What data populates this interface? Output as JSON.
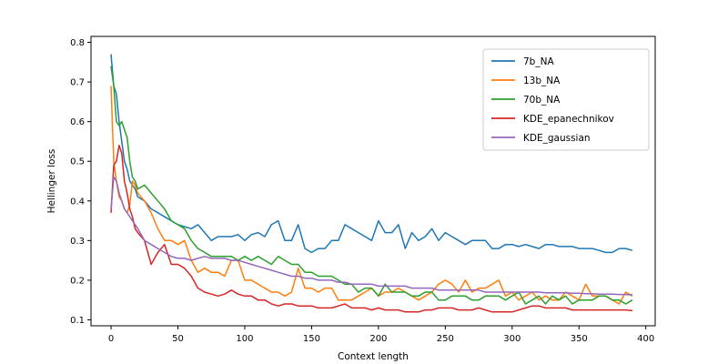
{
  "chart_data": {
    "type": "line",
    "xlabel": "Context length",
    "ylabel": "Hellinger loss",
    "xlim": [
      -15,
      407
    ],
    "ylim": [
      0.085,
      0.815
    ],
    "xticks": [
      0,
      50,
      100,
      150,
      200,
      250,
      300,
      350,
      400
    ],
    "yticks": [
      0.1,
      0.2,
      0.3,
      0.4,
      0.5,
      0.6,
      0.7,
      0.8
    ],
    "xtick_labels": [
      "0",
      "50",
      "100",
      "150",
      "200",
      "250",
      "300",
      "350",
      "400"
    ],
    "ytick_labels": [
      "0.1",
      "0.2",
      "0.3",
      "0.4",
      "0.5",
      "0.6",
      "0.7",
      "0.8"
    ],
    "grid": false,
    "legend_position": "top-right",
    "series": [
      {
        "name": "7b_NA",
        "color": "#1f77b4",
        "x": [
          0,
          2,
          4,
          6,
          8,
          10,
          12,
          14,
          16,
          18,
          20,
          25,
          30,
          35,
          40,
          45,
          50,
          55,
          60,
          65,
          70,
          75,
          80,
          85,
          90,
          95,
          100,
          105,
          110,
          115,
          120,
          125,
          130,
          135,
          140,
          145,
          150,
          155,
          160,
          165,
          170,
          175,
          180,
          185,
          190,
          195,
          200,
          205,
          210,
          215,
          220,
          225,
          230,
          235,
          240,
          245,
          250,
          255,
          260,
          265,
          270,
          275,
          280,
          285,
          290,
          295,
          300,
          305,
          310,
          315,
          320,
          325,
          330,
          335,
          340,
          345,
          350,
          355,
          360,
          365,
          370,
          375,
          380,
          385,
          390
        ],
        "y": [
          0.77,
          0.69,
          0.67,
          0.6,
          0.55,
          0.5,
          0.48,
          0.45,
          0.44,
          0.43,
          0.41,
          0.4,
          0.38,
          0.37,
          0.36,
          0.35,
          0.34,
          0.335,
          0.33,
          0.34,
          0.32,
          0.3,
          0.31,
          0.31,
          0.31,
          0.315,
          0.3,
          0.315,
          0.32,
          0.31,
          0.34,
          0.35,
          0.3,
          0.3,
          0.34,
          0.28,
          0.27,
          0.28,
          0.28,
          0.3,
          0.3,
          0.34,
          0.33,
          0.32,
          0.31,
          0.3,
          0.35,
          0.32,
          0.32,
          0.34,
          0.28,
          0.32,
          0.3,
          0.31,
          0.33,
          0.3,
          0.32,
          0.31,
          0.3,
          0.29,
          0.3,
          0.3,
          0.3,
          0.28,
          0.28,
          0.29,
          0.29,
          0.285,
          0.29,
          0.285,
          0.28,
          0.29,
          0.29,
          0.285,
          0.285,
          0.285,
          0.28,
          0.28,
          0.28,
          0.275,
          0.27,
          0.27,
          0.28,
          0.28,
          0.275
        ]
      },
      {
        "name": "13b_NA",
        "color": "#ff7f0e",
        "x": [
          0,
          2,
          4,
          6,
          8,
          10,
          12,
          14,
          16,
          18,
          20,
          25,
          30,
          35,
          40,
          45,
          50,
          55,
          60,
          65,
          70,
          75,
          80,
          85,
          90,
          95,
          100,
          105,
          110,
          115,
          120,
          125,
          130,
          135,
          140,
          145,
          150,
          155,
          160,
          165,
          170,
          175,
          180,
          185,
          190,
          195,
          200,
          205,
          210,
          215,
          220,
          225,
          230,
          235,
          240,
          245,
          250,
          255,
          260,
          265,
          270,
          275,
          280,
          285,
          290,
          295,
          300,
          305,
          310,
          315,
          320,
          325,
          330,
          335,
          340,
          345,
          350,
          355,
          360,
          365,
          370,
          375,
          380,
          385,
          390
        ],
        "y": [
          0.69,
          0.5,
          0.45,
          0.41,
          0.4,
          0.38,
          0.37,
          0.39,
          0.45,
          0.44,
          0.42,
          0.4,
          0.37,
          0.33,
          0.3,
          0.3,
          0.29,
          0.3,
          0.25,
          0.22,
          0.23,
          0.22,
          0.22,
          0.21,
          0.25,
          0.25,
          0.2,
          0.2,
          0.19,
          0.18,
          0.17,
          0.17,
          0.16,
          0.17,
          0.23,
          0.18,
          0.18,
          0.17,
          0.18,
          0.18,
          0.15,
          0.15,
          0.15,
          0.16,
          0.17,
          0.18,
          0.16,
          0.17,
          0.17,
          0.18,
          0.17,
          0.16,
          0.15,
          0.16,
          0.17,
          0.19,
          0.2,
          0.19,
          0.17,
          0.2,
          0.17,
          0.18,
          0.18,
          0.19,
          0.2,
          0.16,
          0.17,
          0.15,
          0.16,
          0.17,
          0.15,
          0.16,
          0.15,
          0.15,
          0.17,
          0.16,
          0.15,
          0.19,
          0.16,
          0.16,
          0.16,
          0.15,
          0.14,
          0.17,
          0.16
        ]
      },
      {
        "name": "70b_NA",
        "color": "#2ca02c",
        "x": [
          0,
          2,
          4,
          6,
          8,
          10,
          12,
          14,
          16,
          18,
          20,
          25,
          30,
          35,
          40,
          45,
          50,
          55,
          60,
          65,
          70,
          75,
          80,
          85,
          90,
          95,
          100,
          105,
          110,
          115,
          120,
          125,
          130,
          135,
          140,
          145,
          150,
          155,
          160,
          165,
          170,
          175,
          180,
          185,
          190,
          195,
          200,
          205,
          210,
          215,
          220,
          225,
          230,
          235,
          240,
          245,
          250,
          255,
          260,
          265,
          270,
          275,
          280,
          285,
          290,
          295,
          300,
          305,
          310,
          315,
          320,
          325,
          330,
          335,
          340,
          345,
          350,
          355,
          360,
          365,
          370,
          375,
          380,
          385,
          390
        ],
        "y": [
          0.74,
          0.69,
          0.6,
          0.59,
          0.6,
          0.58,
          0.56,
          0.5,
          0.46,
          0.45,
          0.43,
          0.44,
          0.42,
          0.4,
          0.38,
          0.35,
          0.34,
          0.33,
          0.3,
          0.28,
          0.27,
          0.26,
          0.26,
          0.26,
          0.26,
          0.25,
          0.26,
          0.25,
          0.26,
          0.25,
          0.24,
          0.26,
          0.25,
          0.24,
          0.24,
          0.22,
          0.22,
          0.21,
          0.21,
          0.21,
          0.2,
          0.19,
          0.19,
          0.17,
          0.18,
          0.18,
          0.16,
          0.19,
          0.17,
          0.17,
          0.17,
          0.16,
          0.16,
          0.17,
          0.17,
          0.15,
          0.15,
          0.16,
          0.16,
          0.16,
          0.15,
          0.15,
          0.16,
          0.16,
          0.16,
          0.15,
          0.16,
          0.17,
          0.14,
          0.15,
          0.16,
          0.14,
          0.16,
          0.15,
          0.16,
          0.14,
          0.15,
          0.15,
          0.15,
          0.16,
          0.16,
          0.15,
          0.15,
          0.14,
          0.15
        ]
      },
      {
        "name": "KDE_epanechnikov",
        "color": "#d62728",
        "x": [
          0,
          2,
          4,
          6,
          8,
          10,
          12,
          14,
          16,
          18,
          20,
          25,
          30,
          35,
          40,
          45,
          50,
          55,
          60,
          65,
          70,
          75,
          80,
          85,
          90,
          95,
          100,
          105,
          110,
          115,
          120,
          125,
          130,
          135,
          140,
          145,
          150,
          155,
          160,
          165,
          170,
          175,
          180,
          185,
          190,
          195,
          200,
          205,
          210,
          215,
          220,
          225,
          230,
          235,
          240,
          245,
          250,
          255,
          260,
          265,
          270,
          275,
          280,
          285,
          290,
          295,
          300,
          305,
          310,
          315,
          320,
          325,
          330,
          335,
          340,
          345,
          350,
          355,
          360,
          365,
          370,
          375,
          380,
          385,
          390
        ],
        "y": [
          0.37,
          0.49,
          0.5,
          0.54,
          0.52,
          0.45,
          0.42,
          0.38,
          0.36,
          0.33,
          0.32,
          0.3,
          0.24,
          0.27,
          0.29,
          0.24,
          0.24,
          0.23,
          0.21,
          0.18,
          0.17,
          0.165,
          0.16,
          0.165,
          0.175,
          0.165,
          0.16,
          0.16,
          0.15,
          0.15,
          0.14,
          0.135,
          0.14,
          0.14,
          0.135,
          0.135,
          0.135,
          0.13,
          0.13,
          0.13,
          0.135,
          0.14,
          0.13,
          0.13,
          0.13,
          0.125,
          0.13,
          0.125,
          0.125,
          0.125,
          0.12,
          0.12,
          0.12,
          0.125,
          0.125,
          0.13,
          0.13,
          0.13,
          0.125,
          0.125,
          0.125,
          0.13,
          0.125,
          0.12,
          0.12,
          0.12,
          0.12,
          0.125,
          0.13,
          0.135,
          0.135,
          0.13,
          0.13,
          0.13,
          0.13,
          0.125,
          0.125,
          0.125,
          0.125,
          0.125,
          0.125,
          0.125,
          0.125,
          0.125,
          0.123
        ]
      },
      {
        "name": "KDE_gaussian",
        "color": "#9467bd",
        "x": [
          0,
          2,
          4,
          6,
          8,
          10,
          12,
          14,
          16,
          18,
          20,
          25,
          30,
          35,
          40,
          45,
          50,
          55,
          60,
          65,
          70,
          75,
          80,
          85,
          90,
          95,
          100,
          105,
          110,
          115,
          120,
          125,
          130,
          135,
          140,
          145,
          150,
          155,
          160,
          165,
          170,
          175,
          180,
          185,
          190,
          195,
          200,
          205,
          210,
          215,
          220,
          225,
          230,
          235,
          240,
          245,
          250,
          255,
          260,
          265,
          270,
          275,
          280,
          285,
          290,
          295,
          300,
          305,
          310,
          315,
          320,
          325,
          330,
          335,
          340,
          345,
          350,
          355,
          360,
          365,
          370,
          375,
          380,
          385,
          390
        ],
        "y": [
          0.38,
          0.46,
          0.45,
          0.42,
          0.4,
          0.38,
          0.37,
          0.36,
          0.35,
          0.34,
          0.33,
          0.3,
          0.29,
          0.28,
          0.27,
          0.26,
          0.255,
          0.255,
          0.25,
          0.255,
          0.26,
          0.255,
          0.255,
          0.255,
          0.25,
          0.25,
          0.245,
          0.24,
          0.235,
          0.23,
          0.225,
          0.22,
          0.215,
          0.21,
          0.21,
          0.205,
          0.205,
          0.2,
          0.2,
          0.2,
          0.195,
          0.195,
          0.19,
          0.19,
          0.19,
          0.19,
          0.185,
          0.185,
          0.185,
          0.185,
          0.185,
          0.18,
          0.18,
          0.18,
          0.18,
          0.175,
          0.175,
          0.175,
          0.175,
          0.175,
          0.175,
          0.175,
          0.17,
          0.17,
          0.17,
          0.17,
          0.17,
          0.17,
          0.17,
          0.17,
          0.17,
          0.168,
          0.168,
          0.168,
          0.168,
          0.167,
          0.167,
          0.166,
          0.166,
          0.165,
          0.165,
          0.165,
          0.164,
          0.164,
          0.163
        ]
      }
    ]
  }
}
